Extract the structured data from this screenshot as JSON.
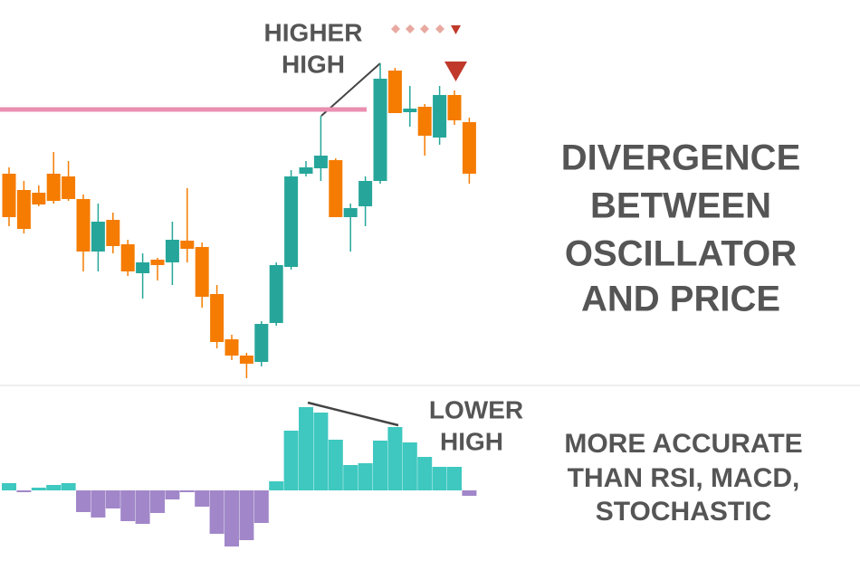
{
  "chart_data": [
    {
      "type": "candlestick",
      "open": [
        258,
        240,
        237,
        258,
        255,
        230,
        172,
        207,
        180,
        148,
        163,
        160,
        184,
        177,
        125,
        75,
        57,
        50,
        93,
        155,
        258,
        264,
        273,
        210,
        222,
        250,
        372,
        326,
        332,
        298,
        345,
        315
      ],
      "close": [
        210,
        197,
        224,
        228,
        230,
        172,
        205,
        178,
        150,
        160,
        157,
        185,
        175,
        122,
        72,
        57,
        48,
        92,
        157,
        255,
        265,
        278,
        210,
        220,
        250,
        363,
        325,
        330,
        300,
        345,
        317,
        258
      ],
      "high": [
        265,
        250,
        245,
        282,
        272,
        235,
        225,
        215,
        185,
        170,
        165,
        205,
        242,
        182,
        135,
        80,
        60,
        95,
        160,
        262,
        272,
        322,
        275,
        225,
        255,
        380,
        375,
        355,
        335,
        355,
        350,
        320
      ],
      "low": [
        200,
        192,
        222,
        225,
        228,
        150,
        150,
        170,
        145,
        120,
        140,
        135,
        160,
        110,
        65,
        52,
        32,
        45,
        90,
        152,
        255,
        250,
        210,
        172,
        200,
        247,
        325,
        310,
        278,
        290,
        312,
        247
      ],
      "up_color": "#26a69a",
      "down_color": "#f57c00",
      "ylim": [
        0,
        450
      ],
      "level": 329,
      "level_color": "#ea8fb0",
      "annotation": [
        "HIGHER",
        "HIGH"
      ]
    },
    {
      "type": "bar",
      "values": [
        8,
        -2,
        3,
        6,
        8,
        -24,
        -30,
        -20,
        -34,
        -37,
        -25,
        -10,
        -2,
        -18,
        -48,
        -62,
        -55,
        -36,
        10,
        66,
        92,
        86,
        56,
        28,
        30,
        55,
        70,
        53,
        37,
        26,
        26,
        -6
      ],
      "positive_color": "#3ec8c0",
      "negative_color": "#a187c9",
      "ylim": [
        -78,
        112
      ],
      "annotation": [
        "LOWER",
        "HIGH"
      ]
    }
  ],
  "title": [
    "DIVERGENCE",
    "BETWEEN",
    "OSCILLATOR",
    "AND PRICE"
  ],
  "subtitle": [
    "MORE ACCURATE",
    "THAN RSI, MACD,",
    "STOCHASTIC"
  ]
}
